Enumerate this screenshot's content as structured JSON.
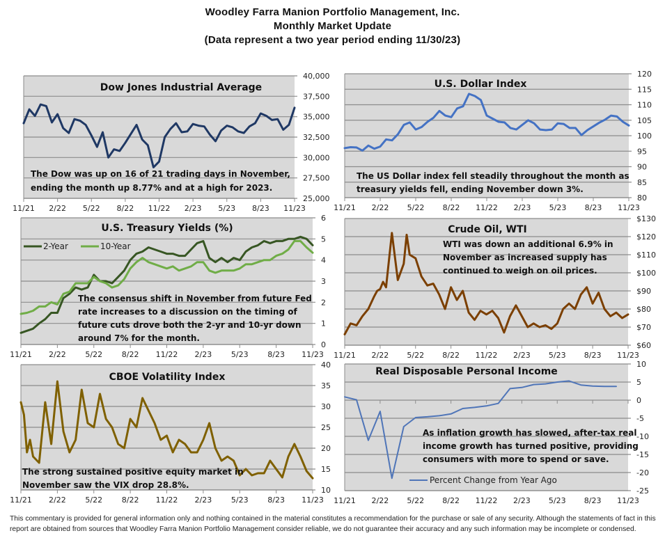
{
  "header": {
    "line1": "Woodley Farra Manion Portfolio Management, Inc.",
    "line2": "Monthly Market Update",
    "line3": "(Data represent a two year period ending 11/30/23)"
  },
  "footer": {
    "disclaimer": "This commentary is provided for general information only and nothing contained in the material constitutes a recommendation for the purchase or sale of any security. Although the statements of fact in this report are obtained from sources that Woodley Farra Manion Portfolio Management consider reliable, we do not guarantee their accuracy and any such information may be incomplete or condensed."
  },
  "colors": {
    "plot_bg": "#d9d9d9",
    "grid": "#8c8c8c",
    "dow": "#1f3864",
    "dxy": "#4472c4",
    "t2y": "#375623",
    "t10y": "#70ad47",
    "oil": "#7b3f00",
    "vix": "#7f6000",
    "rdpi": "#4f75b8"
  },
  "chart_data": [
    {
      "id": "dow",
      "type": "line",
      "title": "Dow Jones Industrial Average",
      "note": [
        "The Dow was up on 16 of 21 trading days in November,",
        "ending the month up 8.77% and at a high for 2023."
      ],
      "x_tick_labels": [
        "11/21",
        "2/22",
        "5/22",
        "8/22",
        "11/22",
        "2/23",
        "5/23",
        "8/23",
        "11/23"
      ],
      "xlim": [
        0,
        24
      ],
      "ylim": [
        25000,
        40000
      ],
      "y_ticks": [
        25000,
        27500,
        30000,
        32500,
        35000,
        37500,
        40000
      ],
      "y_tick_labels": [
        "25,000",
        "27,500",
        "30,000",
        "32,500",
        "35,000",
        "37,500",
        "40,000"
      ],
      "grid": true,
      "series": [
        {
          "name": "Dow Jones Industrial Average",
          "color_key": "dow",
          "x": [
            0,
            0.5,
            1,
            1.5,
            2,
            2.5,
            3,
            3.5,
            4,
            4.5,
            5,
            5.5,
            6,
            6.5,
            7,
            7.5,
            8,
            8.5,
            9,
            9.5,
            10,
            10.5,
            11,
            11.5,
            12,
            12.5,
            13,
            13.5,
            14,
            14.5,
            15,
            15.5,
            16,
            16.5,
            17,
            17.5,
            18,
            18.5,
            19,
            19.5,
            20,
            20.5,
            21,
            21.5,
            22,
            22.5,
            23,
            23.5,
            24
          ],
          "y": [
            34200,
            35900,
            35100,
            36500,
            36300,
            34300,
            35300,
            33600,
            33000,
            34700,
            34500,
            34000,
            32700,
            31300,
            33100,
            30000,
            31000,
            30800,
            31800,
            32900,
            34000,
            32200,
            31500,
            28800,
            29500,
            32500,
            33500,
            34200,
            33100,
            33200,
            34100,
            33900,
            33800,
            32800,
            32000,
            33300,
            33900,
            33700,
            33200,
            33000,
            33800,
            34200,
            35400,
            35100,
            34600,
            34700,
            33400,
            34000,
            36100
          ]
        }
      ]
    },
    {
      "id": "dxy",
      "type": "line",
      "title": "U.S. Dollar Index",
      "note": [
        "The US Dollar index fell steadily throughout the month as",
        "treasury yields fell, ending November down 3%."
      ],
      "x_tick_labels": [
        "11/21",
        "2/22",
        "5/22",
        "8/22",
        "11/22",
        "2/23",
        "5/23",
        "8/23",
        "11/23"
      ],
      "xlim": [
        0,
        24
      ],
      "ylim": [
        80,
        120
      ],
      "y_ticks": [
        80,
        85,
        90,
        95,
        100,
        105,
        110,
        115,
        120
      ],
      "y_tick_labels": [
        "80",
        "85",
        "90",
        "95",
        "100",
        "105",
        "110",
        "115",
        "120"
      ],
      "grid": true,
      "series": [
        {
          "name": "U.S. Dollar Index",
          "color_key": "dxy",
          "x": [
            0,
            0.5,
            1,
            1.5,
            2,
            2.5,
            3,
            3.5,
            4,
            4.5,
            5,
            5.5,
            6,
            6.5,
            7,
            7.5,
            8,
            8.5,
            9,
            9.5,
            10,
            10.5,
            11,
            11.5,
            12,
            12.5,
            13,
            13.5,
            14,
            14.5,
            15,
            15.5,
            16,
            16.5,
            17,
            17.5,
            18,
            18.5,
            19,
            19.5,
            20,
            20.5,
            21,
            21.5,
            22,
            22.5,
            23,
            23.5,
            24
          ],
          "y": [
            96,
            96.3,
            96.2,
            95.2,
            96.8,
            95.8,
            96.5,
            98.8,
            98.5,
            100.5,
            103.5,
            104.3,
            102,
            102.8,
            104.5,
            105.8,
            108,
            106.5,
            106,
            108.8,
            109.5,
            113.5,
            112.8,
            111.5,
            106.5,
            105.5,
            104.5,
            104.3,
            102.5,
            102,
            103.5,
            105,
            104,
            102,
            101.8,
            102,
            104,
            103.8,
            102.5,
            102.5,
            100.2,
            101.8,
            103,
            104.2,
            105.2,
            106.5,
            106.2,
            104.5,
            103.3
          ]
        }
      ]
    },
    {
      "id": "treasury",
      "type": "line",
      "title": "U.S. Treasury Yields (%)",
      "note": [
        "The consensus shift in November from future Fed",
        "rate increases to a discussion on the timing of",
        "future cuts drove both the 2-yr and 10-yr down",
        "around 7% for the month."
      ],
      "x_tick_labels": [
        "11/21",
        "2/22",
        "5/22",
        "8/22",
        "11/22",
        "2/23",
        "5/23",
        "8/23",
        "11/23"
      ],
      "xlim": [
        0,
        24
      ],
      "ylim": [
        0,
        6
      ],
      "y_ticks": [
        0,
        1,
        2,
        3,
        4,
        5,
        6
      ],
      "y_tick_labels": [
        "0",
        "1",
        "2",
        "3",
        "4",
        "5",
        "6"
      ],
      "grid": true,
      "legend": {
        "placement": "top-left"
      },
      "series": [
        {
          "name": "2-Year",
          "color_key": "t2y",
          "x": [
            0,
            0.5,
            1,
            1.5,
            2,
            2.5,
            3,
            3.5,
            4,
            4.5,
            5,
            5.5,
            6,
            6.5,
            7,
            7.5,
            8,
            8.5,
            9,
            9.5,
            10,
            10.5,
            11,
            11.5,
            12,
            12.5,
            13,
            13.5,
            14,
            14.5,
            15,
            15.5,
            16,
            16.5,
            17,
            17.5,
            18,
            18.5,
            19,
            19.5,
            20,
            20.5,
            21,
            21.5,
            22,
            22.5,
            23,
            23.5,
            24
          ],
          "y": [
            0.55,
            0.65,
            0.75,
            1.0,
            1.2,
            1.5,
            1.5,
            2.2,
            2.4,
            2.7,
            2.6,
            2.7,
            3.3,
            3.0,
            3.0,
            2.9,
            3.2,
            3.5,
            4.0,
            4.3,
            4.4,
            4.6,
            4.5,
            4.4,
            4.3,
            4.3,
            4.2,
            4.2,
            4.5,
            4.8,
            4.9,
            4.1,
            3.9,
            4.1,
            3.9,
            4.1,
            4.0,
            4.4,
            4.6,
            4.7,
            4.9,
            4.8,
            4.9,
            4.9,
            5.0,
            5.0,
            5.1,
            5.0,
            4.7
          ]
        },
        {
          "name": "10-Year",
          "color_key": "t10y",
          "x": [
            0,
            0.5,
            1,
            1.5,
            2,
            2.5,
            3,
            3.5,
            4,
            4.5,
            5,
            5.5,
            6,
            6.5,
            7,
            7.5,
            8,
            8.5,
            9,
            9.5,
            10,
            10.5,
            11,
            11.5,
            12,
            12.5,
            13,
            13.5,
            14,
            14.5,
            15,
            15.5,
            16,
            16.5,
            17,
            17.5,
            18,
            18.5,
            19,
            19.5,
            20,
            20.5,
            21,
            21.5,
            22,
            22.5,
            23,
            23.5,
            24
          ],
          "y": [
            1.45,
            1.5,
            1.6,
            1.8,
            1.8,
            2.0,
            1.9,
            2.4,
            2.5,
            2.9,
            2.9,
            2.9,
            3.2,
            3.0,
            2.9,
            2.7,
            2.8,
            3.1,
            3.6,
            3.9,
            4.1,
            3.9,
            3.8,
            3.7,
            3.6,
            3.7,
            3.5,
            3.6,
            3.7,
            3.9,
            3.9,
            3.5,
            3.4,
            3.5,
            3.5,
            3.5,
            3.6,
            3.8,
            3.8,
            3.9,
            4.0,
            4.0,
            4.2,
            4.3,
            4.5,
            4.9,
            4.9,
            4.6,
            4.35
          ]
        }
      ]
    },
    {
      "id": "oil",
      "type": "line",
      "title": "Crude Oil, WTI",
      "note": [
        "WTI was down an additional 6.9% in",
        "November as increased supply has",
        "continued to weigh on oil prices."
      ],
      "x_tick_labels": [
        "11/21",
        "2/22",
        "5/22",
        "8/22",
        "11/22",
        "2/23",
        "5/23",
        "8/23",
        "11/23"
      ],
      "xlim": [
        0,
        24
      ],
      "ylim": [
        60,
        130
      ],
      "y_ticks": [
        60,
        70,
        80,
        90,
        100,
        110,
        120,
        130
      ],
      "y_tick_labels": [
        "$60",
        "$70",
        "$80",
        "$90",
        "$100",
        "$110",
        "$120",
        "$130"
      ],
      "grid": true,
      "series": [
        {
          "name": "Crude Oil, WTI",
          "color_key": "oil",
          "x": [
            0,
            0.5,
            1,
            1.5,
            2,
            2.5,
            2.75,
            3,
            3.25,
            3.5,
            4,
            4.5,
            5,
            5.25,
            5.5,
            6,
            6.5,
            7,
            7.5,
            8,
            8.5,
            9,
            9.5,
            10,
            10.5,
            11,
            11.5,
            12,
            12.5,
            13,
            13.5,
            14,
            14.5,
            15,
            15.5,
            16,
            16.5,
            17,
            17.5,
            18,
            18.5,
            19,
            19.5,
            20,
            20.5,
            21,
            21.5,
            22,
            22.5,
            23,
            23.5,
            24
          ],
          "y": [
            66,
            72,
            71,
            76,
            80,
            87,
            90,
            91,
            95,
            92,
            122,
            96,
            105,
            121,
            110,
            108,
            98,
            93,
            94,
            88,
            80,
            92,
            85,
            90,
            78,
            74,
            79,
            77,
            79,
            75,
            67,
            76,
            82,
            76,
            70,
            72,
            70,
            71,
            69,
            72,
            80,
            83,
            80,
            88,
            92,
            83,
            89,
            80,
            76,
            78,
            75,
            77
          ]
        }
      ]
    },
    {
      "id": "vix",
      "type": "line",
      "title": "CBOE Volatility Index",
      "note": [
        "The strong sustained positive equity market in",
        "November saw the VIX drop 28.8%."
      ],
      "x_tick_labels": [
        "11/21",
        "2/22",
        "5/22",
        "8/22",
        "11/22",
        "2/23",
        "5/23",
        "8/23",
        "11/23"
      ],
      "xlim": [
        0,
        24
      ],
      "ylim": [
        10,
        40
      ],
      "y_ticks": [
        10,
        15,
        20,
        25,
        30,
        35,
        40
      ],
      "y_tick_labels": [
        "10",
        "15",
        "20",
        "25",
        "30",
        "35",
        "40"
      ],
      "grid": true,
      "series": [
        {
          "name": "CBOE Volatility Index",
          "color_key": "vix",
          "x": [
            0,
            0.25,
            0.5,
            0.75,
            1,
            1.5,
            2,
            2.5,
            3,
            3.5,
            4,
            4.5,
            5,
            5.5,
            6,
            6.5,
            7,
            7.5,
            8,
            8.5,
            9,
            9.5,
            10,
            10.5,
            11,
            11.5,
            12,
            12.5,
            13,
            13.5,
            14,
            14.5,
            15,
            15.5,
            16,
            16.5,
            17,
            17.5,
            18,
            18.5,
            19,
            19.5,
            20,
            20.5,
            21,
            21.5,
            22,
            22.5,
            23,
            23.5,
            24
          ],
          "y": [
            31,
            28,
            19,
            22,
            18,
            16.5,
            31,
            21,
            36,
            24,
            19,
            22,
            34,
            26,
            25,
            33,
            27,
            25,
            21,
            20,
            27,
            25,
            32,
            29,
            26,
            22,
            23,
            19,
            22,
            21,
            19,
            19,
            22,
            26,
            20,
            17,
            18,
            17,
            13.5,
            15,
            13.5,
            14,
            14,
            17,
            15,
            13,
            18,
            21,
            18,
            14.5,
            12.8
          ]
        }
      ]
    },
    {
      "id": "rdpi",
      "type": "line",
      "title": "Real Disposable Personal Income",
      "note": [
        "As inflation growth has slowed, after-tax real",
        "income growth has turned positive, providing",
        "consumers with more to spend or save."
      ],
      "x_tick_labels": [
        "11/21",
        "2/22",
        "5/22",
        "8/22",
        "11/22",
        "2/23",
        "5/23",
        "8/23",
        "11/23"
      ],
      "xlim": [
        0,
        24
      ],
      "ylim": [
        -25,
        10
      ],
      "y_ticks": [
        -25,
        -20,
        -15,
        -10,
        -5,
        0,
        5,
        10
      ],
      "y_tick_labels": [
        "-25",
        "-20",
        "-15",
        "-10",
        "-5",
        "0",
        "5",
        "10"
      ],
      "grid": true,
      "legend": {
        "placement": "bottom-left",
        "label": "Percent Change from Year Ago"
      },
      "series": [
        {
          "name": "Percent Change from Year Ago",
          "color_key": "rdpi",
          "x": [
            0,
            1,
            2,
            3,
            4,
            5,
            6,
            7,
            8,
            9,
            10,
            11,
            12,
            13,
            14,
            15,
            16,
            17,
            18,
            19,
            20,
            21,
            22,
            23
          ],
          "y": [
            0.9,
            0.1,
            -11.1,
            -3.1,
            -21.6,
            -7.3,
            -4.8,
            -4.6,
            -4.3,
            -3.8,
            -2.3,
            -2.0,
            -1.6,
            -0.9,
            3.2,
            3.5,
            4.3,
            4.5,
            5.0,
            5.3,
            4.2,
            3.9,
            3.8,
            3.8
          ]
        }
      ]
    }
  ]
}
